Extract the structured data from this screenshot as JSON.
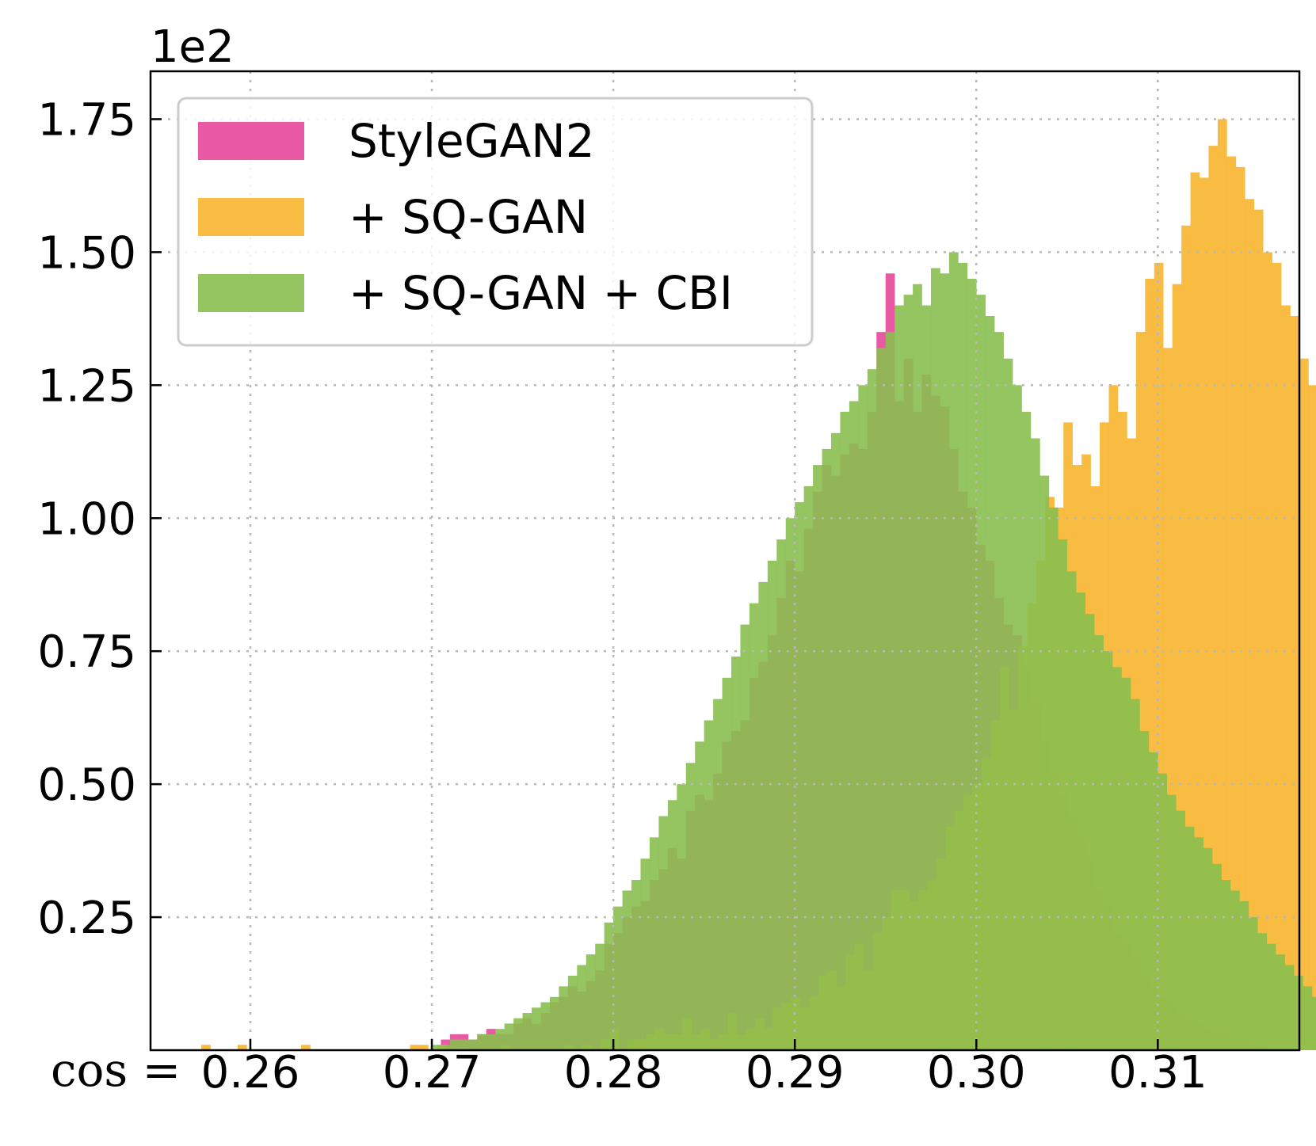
{
  "chart_data": {
    "type": "histogram",
    "axis_multiplier": "1e2",
    "x_prefix_label": "cos =",
    "xlim": [
      0.2545,
      0.3178
    ],
    "ylim": [
      0,
      1.84
    ],
    "x_ticks": [
      {
        "value": 0.26,
        "label": "0.26"
      },
      {
        "value": 0.27,
        "label": "0.27"
      },
      {
        "value": 0.28,
        "label": "0.28"
      },
      {
        "value": 0.29,
        "label": "0.29"
      },
      {
        "value": 0.3,
        "label": "0.30"
      },
      {
        "value": 0.31,
        "label": "0.31"
      }
    ],
    "y_ticks": [
      {
        "value": 0.25,
        "label": "0.25"
      },
      {
        "value": 0.5,
        "label": "0.50"
      },
      {
        "value": 0.75,
        "label": "0.75"
      },
      {
        "value": 1.0,
        "label": "1.00"
      },
      {
        "value": 1.25,
        "label": "1.25"
      },
      {
        "value": 1.5,
        "label": "1.50"
      },
      {
        "value": 1.75,
        "label": "1.75"
      }
    ],
    "grid": true,
    "legend_position": "top-left",
    "bin_width": 0.0005,
    "series": [
      {
        "name": "StyleGAN2",
        "color": "#e8489a",
        "bin_start": 0.2705,
        "counts": [
          0.02,
          0.03,
          0.03,
          0.02,
          0.03,
          0.04,
          0.03,
          0.03,
          0.05,
          0.06,
          0.05,
          0.07,
          0.09,
          0.1,
          0.12,
          0.11,
          0.13,
          0.15,
          0.2,
          0.22,
          0.25,
          0.27,
          0.28,
          0.32,
          0.34,
          0.38,
          0.36,
          0.45,
          0.48,
          0.47,
          0.52,
          0.58,
          0.6,
          0.62,
          0.7,
          0.73,
          0.78,
          0.85,
          0.92,
          0.9,
          0.98,
          1.05,
          1.1,
          1.08,
          1.12,
          1.14,
          1.13,
          1.2,
          1.35,
          1.46,
          1.22,
          1.3,
          1.2,
          1.27,
          1.23,
          1.21,
          1.13,
          1.05,
          1.02,
          0.95,
          0.92,
          0.85,
          0.8,
          0.78,
          0.72,
          0.65,
          0.58,
          0.52,
          0.48,
          0.44,
          0.4,
          0.36,
          0.3,
          0.27,
          0.22,
          0.2,
          0.18,
          0.14,
          0.12,
          0.1,
          0.09,
          0.07,
          0.06,
          0.05,
          0.04,
          0.03,
          0.03,
          0.02,
          0.02,
          0.01,
          0.01
        ]
      },
      {
        "name": "+ SQ-GAN",
        "color": "#f8b52e",
        "bin_start": 0.2573,
        "counts": [
          0.01,
          0,
          0,
          0,
          0.01,
          0,
          0,
          0,
          0,
          0,
          0,
          0.01,
          0,
          0,
          0,
          0,
          0,
          0,
          0,
          0,
          0,
          0,
          0,
          0.01,
          0.01,
          0,
          0.01,
          0,
          0,
          0,
          0,
          0,
          0,
          0.01,
          0,
          0,
          0,
          0,
          0,
          0,
          0.01,
          0,
          0.01,
          0,
          0.02,
          0.04,
          0,
          0.02,
          0.02,
          0.03,
          0.04,
          0.03,
          0.03,
          0.06,
          0.03,
          0.04,
          0.02,
          0.03,
          0.07,
          0.03,
          0.04,
          0.06,
          0.04,
          0.08,
          0.09,
          0.1,
          0.08,
          0.1,
          0.14,
          0.15,
          0.12,
          0.18,
          0.2,
          0.15,
          0.22,
          0.25,
          0.3,
          0.3,
          0.28,
          0.3,
          0.32,
          0.36,
          0.42,
          0.45,
          0.48,
          0.5,
          0.55,
          0.62,
          0.72,
          0.64,
          0.76,
          0.84,
          0.92,
          1.04,
          1.02,
          1.18,
          1.1,
          1.12,
          1.06,
          1.18,
          1.25,
          1.2,
          1.15,
          1.35,
          1.45,
          1.48,
          1.32,
          1.44,
          1.55,
          1.65,
          1.64,
          1.7,
          1.75,
          1.68,
          1.66,
          1.6,
          1.58,
          1.5,
          1.48,
          1.4,
          1.38,
          1.3,
          1.25,
          1.18,
          1.12,
          1.04,
          0.98,
          0.92,
          0.85,
          0.78,
          0.72,
          0.64,
          0.58,
          0.5,
          0.44,
          0.38,
          0.32,
          0.27,
          0.22,
          0.18,
          0.14,
          0.11,
          0.08,
          0.06,
          0.04,
          0.03,
          0.02,
          0.01
        ]
      },
      {
        "name": "+ SQ-GAN + CBI",
        "color": "#8abf4f",
        "bin_start": 0.27,
        "counts": [
          0.01,
          0.01,
          0.02,
          0.02,
          0.02,
          0.03,
          0.03,
          0.04,
          0.05,
          0.06,
          0.07,
          0.08,
          0.09,
          0.1,
          0.12,
          0.14,
          0.16,
          0.18,
          0.2,
          0.24,
          0.27,
          0.3,
          0.32,
          0.36,
          0.4,
          0.44,
          0.47,
          0.5,
          0.54,
          0.58,
          0.62,
          0.66,
          0.7,
          0.74,
          0.8,
          0.84,
          0.88,
          0.92,
          0.96,
          1.0,
          1.03,
          1.06,
          1.1,
          1.13,
          1.16,
          1.2,
          1.22,
          1.25,
          1.28,
          1.32,
          1.35,
          1.4,
          1.42,
          1.44,
          1.4,
          1.47,
          1.46,
          1.5,
          1.48,
          1.45,
          1.42,
          1.38,
          1.35,
          1.3,
          1.25,
          1.2,
          1.15,
          1.08,
          1.02,
          0.96,
          0.9,
          0.86,
          0.82,
          0.78,
          0.75,
          0.72,
          0.7,
          0.66,
          0.6,
          0.56,
          0.52,
          0.48,
          0.45,
          0.42,
          0.4,
          0.38,
          0.35,
          0.32,
          0.3,
          0.28,
          0.25,
          0.22,
          0.2,
          0.18,
          0.16,
          0.14,
          0.12,
          0.1,
          0.09,
          0.08,
          0.07,
          0.06,
          0.05,
          0.04,
          0.04,
          0.03,
          0.03,
          0.02,
          0.02,
          0.02,
          0.01,
          0.01,
          0.01,
          0.01,
          0.02,
          0.02,
          0.01,
          0.01,
          0.01,
          0.01,
          0.01,
          0.02
        ]
      }
    ]
  }
}
